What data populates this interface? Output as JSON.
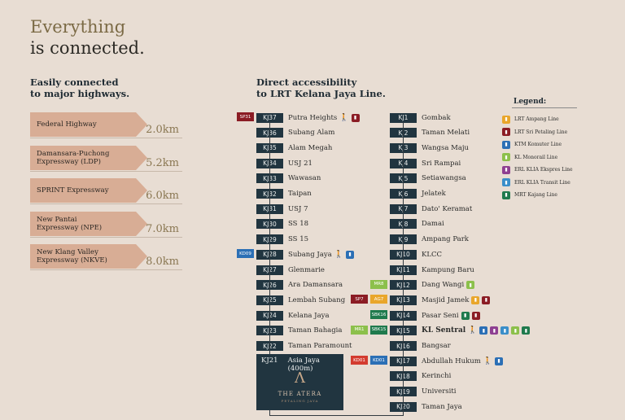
{
  "headline": {
    "line1": "Everything",
    "line2": "is connected."
  },
  "highways": {
    "title1": "Easily connected",
    "title2": "to major highways.",
    "items": [
      {
        "name1": "Federal Highway",
        "name2": "",
        "distance": "2.0km"
      },
      {
        "name1": "Damansara-Puchong",
        "name2": "Expressway (LDP)",
        "distance": "5.2km"
      },
      {
        "name1": "SPRINT Expressway",
        "name2": "",
        "distance": "6.0km"
      },
      {
        "name1": "New Pantai",
        "name2": "Expressway (NPE)",
        "distance": "7.0km"
      },
      {
        "name1": "New Klang Valley",
        "name2": "Expressway (NKVE)",
        "distance": "8.0km"
      }
    ]
  },
  "lrt": {
    "title1": "Direct accessibility",
    "title2": "to LRT Kelana Jaya Line.",
    "left": [
      {
        "code": "KJ37",
        "name": "Putra Heights"
      },
      {
        "code": "KJ36",
        "name": "Subang Alam"
      },
      {
        "code": "KJ35",
        "name": "Alam Megah"
      },
      {
        "code": "KJ34",
        "name": "USJ 21"
      },
      {
        "code": "KJ33",
        "name": "Wawasan"
      },
      {
        "code": "KJ32",
        "name": "Taipan"
      },
      {
        "code": "KJ31",
        "name": "USJ 7"
      },
      {
        "code": "KJ30",
        "name": "SS 18"
      },
      {
        "code": "KJ29",
        "name": "SS 15"
      },
      {
        "code": "KJ28",
        "name": "Subang Jaya"
      },
      {
        "code": "KJ27",
        "name": "Glenmarie"
      },
      {
        "code": "KJ26",
        "name": "Ara Damansara"
      },
      {
        "code": "KJ25",
        "name": "Lembah Subang"
      },
      {
        "code": "KJ24",
        "name": "Kelana Jaya"
      },
      {
        "code": "KJ23",
        "name": "Taman Bahagia"
      },
      {
        "code": "KJ22",
        "name": "Taman Paramount"
      }
    ],
    "right": [
      {
        "code": "KJ1",
        "name": "Gombak"
      },
      {
        "code": "KJ2",
        "name": "Taman Melati"
      },
      {
        "code": "KJ3",
        "name": "Wangsa Maju"
      },
      {
        "code": "KJ4",
        "name": "Sri Rampai"
      },
      {
        "code": "KJ5",
        "name": "Setiawangsa"
      },
      {
        "code": "KJ6",
        "name": "Jelatek"
      },
      {
        "code": "KJ7",
        "name": "Dato' Keramat"
      },
      {
        "code": "KJ8",
        "name": "Damai"
      },
      {
        "code": "KJ9",
        "name": "Ampang Park"
      },
      {
        "code": "KJ10",
        "name": "KLCC"
      },
      {
        "code": "KJ11",
        "name": "Kampung Baru"
      },
      {
        "code": "KJ12",
        "name": "Dang Wangi"
      },
      {
        "code": "KJ13",
        "name": "Masjid Jamek"
      },
      {
        "code": "KJ14",
        "name": "Pasar Seni"
      },
      {
        "code": "KJ15",
        "name": "KL Sentral"
      },
      {
        "code": "KJ16",
        "name": "Bangsar"
      },
      {
        "code": "KJ17",
        "name": "Abdullah Hukum"
      },
      {
        "code": "KJ18",
        "name": "Kerinchi"
      },
      {
        "code": "KJ19",
        "name": "Universiti"
      },
      {
        "code": "KJ20",
        "name": "Taman Jaya"
      }
    ],
    "atera": {
      "code": "KJ21",
      "name": "Asia Jaya (400m)",
      "logo": "Λ",
      "brand": "THE ATERA",
      "sub": "PETALING JAYA"
    },
    "interchange_tags": {
      "sp31": "SP31",
      "kd09": "KD09",
      "sp7": "SP7",
      "ag7": "AG7",
      "mr8": "MR8",
      "sbk16": "SBK16",
      "mr1": "MR1",
      "sbk15": "SBK15",
      "kd01a": "KD01",
      "kd01b": "KD01"
    }
  },
  "legend": {
    "title": "Legend:",
    "items": [
      {
        "label": "LRT Ampang Line",
        "color": "#e9a62b"
      },
      {
        "label": "LRT Sri Petaling Line",
        "color": "#8b1c24"
      },
      {
        "label": "KTM Komuter Line",
        "color": "#2b6fb5"
      },
      {
        "label": "KL Monorail Line",
        "color": "#8cc04b"
      },
      {
        "label": "ERL KLIA Ekspres Line",
        "color": "#8e3f91"
      },
      {
        "label": "ERL KLIA Transit Line",
        "color": "#3a8ec9"
      },
      {
        "label": "MRT Kajang Line",
        "color": "#1f7a4d"
      }
    ]
  },
  "colors": {
    "ampang": "#e9a62b",
    "sri_petaling": "#8b1c24",
    "ktm": "#2b6fb5",
    "monorail": "#8cc04b",
    "erl_ekspres": "#8e3f91",
    "erl_transit": "#3a8ec9",
    "mrt_kajang": "#1f7a4d",
    "mrt_putrajaya": "#1f7a4d",
    "sbk": "#1f7a4d",
    "kd_red": "#d33b2f"
  }
}
